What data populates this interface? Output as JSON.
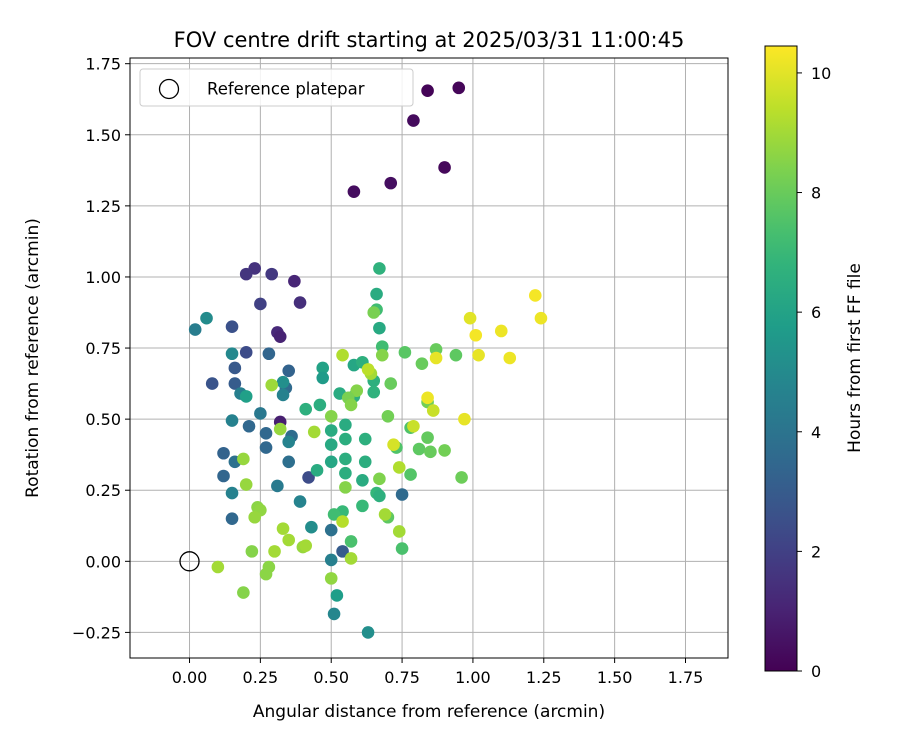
{
  "chart_data": {
    "type": "scatter",
    "title": "FOV centre drift starting at 2025/03/31 11:00:45",
    "xlabel": "Angular distance from reference (arcmin)",
    "ylabel": "Rotation from reference (arcmin)",
    "xlim": [
      -0.21,
      1.9
    ],
    "ylim": [
      -0.34,
      1.77
    ],
    "xticks": [
      0.0,
      0.25,
      0.5,
      0.75,
      1.0,
      1.25,
      1.5,
      1.75
    ],
    "xtick_labels": [
      "0.00",
      "0.25",
      "0.50",
      "0.75",
      "1.00",
      "1.25",
      "1.50",
      "1.75"
    ],
    "yticks": [
      -0.25,
      0.0,
      0.25,
      0.5,
      0.75,
      1.0,
      1.25,
      1.5,
      1.75
    ],
    "ytick_labels": [
      "−0.25",
      "0.00",
      "0.25",
      "0.50",
      "0.75",
      "1.00",
      "1.25",
      "1.50",
      "1.75"
    ],
    "grid": true,
    "legend": {
      "position": "upper-left",
      "entries": [
        "Reference platepar"
      ]
    },
    "reference_point": {
      "x": 0.0,
      "y": 0.0,
      "label": "Reference platepar"
    },
    "colorbar": {
      "label": "Hours from first FF file",
      "range": [
        0,
        10.45
      ],
      "ticks": [
        0,
        2,
        4,
        6,
        8,
        10
      ],
      "tick_labels": [
        "0",
        "2",
        "4",
        "6",
        "8",
        "10"
      ],
      "colormap": "viridis"
    },
    "points": [
      [
        0.84,
        1.655,
        0.1
      ],
      [
        0.95,
        1.665,
        0.15
      ],
      [
        0.79,
        1.55,
        0.3
      ],
      [
        0.58,
        1.3,
        0.35
      ],
      [
        0.71,
        1.33,
        0.4
      ],
      [
        0.9,
        1.385,
        0.2
      ],
      [
        0.23,
        1.03,
        1.5
      ],
      [
        0.2,
        1.01,
        1.6
      ],
      [
        0.29,
        1.01,
        1.7
      ],
      [
        0.37,
        0.985,
        1.1
      ],
      [
        0.25,
        0.905,
        2.0
      ],
      [
        0.39,
        0.91,
        1.4
      ],
      [
        0.31,
        0.805,
        1.2
      ],
      [
        0.32,
        0.79,
        1.0
      ],
      [
        0.32,
        0.49,
        0.9
      ],
      [
        0.42,
        0.295,
        2.4
      ],
      [
        0.15,
        0.825,
        2.6
      ],
      [
        0.2,
        0.735,
        2.4
      ],
      [
        0.28,
        0.73,
        3.4
      ],
      [
        0.08,
        0.625,
        2.7
      ],
      [
        0.16,
        0.68,
        2.9
      ],
      [
        0.16,
        0.625,
        3.0
      ],
      [
        0.35,
        0.67,
        3.3
      ],
      [
        0.34,
        0.61,
        3.6
      ],
      [
        0.33,
        0.585,
        4.6
      ],
      [
        0.36,
        0.44,
        3.7
      ],
      [
        0.25,
        0.52,
        4.2
      ],
      [
        0.21,
        0.475,
        3.5
      ],
      [
        0.27,
        0.45,
        3.5
      ],
      [
        0.35,
        0.35,
        3.8
      ],
      [
        0.12,
        0.38,
        3.3
      ],
      [
        0.16,
        0.35,
        3.9
      ],
      [
        0.27,
        0.4,
        3.5
      ],
      [
        0.12,
        0.3,
        3.4
      ],
      [
        0.31,
        0.265,
        4.3
      ],
      [
        0.39,
        0.21,
        4.7
      ],
      [
        0.15,
        0.15,
        3.5
      ],
      [
        0.15,
        0.24,
        4.6
      ],
      [
        0.54,
        0.035,
        3.0
      ],
      [
        0.5,
        0.11,
        3.9
      ],
      [
        0.75,
        0.235,
        3.6
      ],
      [
        0.5,
        0.005,
        4.5
      ],
      [
        0.02,
        0.815,
        4.4
      ],
      [
        0.06,
        0.855,
        5.0
      ],
      [
        0.15,
        0.73,
        4.9
      ],
      [
        0.18,
        0.59,
        4.5
      ],
      [
        0.2,
        0.58,
        5.9
      ],
      [
        0.15,
        0.495,
        4.6
      ],
      [
        0.33,
        0.63,
        5.2
      ],
      [
        0.35,
        0.42,
        4.7
      ],
      [
        0.43,
        0.12,
        5.1
      ],
      [
        0.52,
        -0.12,
        5.8
      ],
      [
        0.51,
        -0.185,
        4.8
      ],
      [
        0.63,
        -0.25,
        5.2
      ],
      [
        0.47,
        0.68,
        6.0
      ],
      [
        0.47,
        0.645,
        5.7
      ],
      [
        0.41,
        0.535,
        6.6
      ],
      [
        0.46,
        0.55,
        6.5
      ],
      [
        0.5,
        0.46,
        6.4
      ],
      [
        0.5,
        0.41,
        6.3
      ],
      [
        0.5,
        0.35,
        6.2
      ],
      [
        0.45,
        0.32,
        6.4
      ],
      [
        0.53,
        0.59,
        6.4
      ],
      [
        0.58,
        0.69,
        6.2
      ],
      [
        0.58,
        0.58,
        6.6
      ],
      [
        0.55,
        0.48,
        6.4
      ],
      [
        0.55,
        0.43,
        6.5
      ],
      [
        0.55,
        0.36,
        6.5
      ],
      [
        0.55,
        0.31,
        6.5
      ],
      [
        0.62,
        0.35,
        6.5
      ],
      [
        0.61,
        0.285,
        6.4
      ],
      [
        0.62,
        0.43,
        6.6
      ],
      [
        0.61,
        0.7,
        6.6
      ],
      [
        0.65,
        0.635,
        6.6
      ],
      [
        0.65,
        0.595,
        6.7
      ],
      [
        0.67,
        0.82,
        6.3
      ],
      [
        0.66,
        0.94,
        6.4
      ],
      [
        0.67,
        1.03,
        6.7
      ],
      [
        0.66,
        0.885,
        7.2
      ],
      [
        0.68,
        0.755,
        7.2
      ],
      [
        0.66,
        0.24,
        6.9
      ],
      [
        0.67,
        0.23,
        6.6
      ],
      [
        0.54,
        0.175,
        7.0
      ],
      [
        0.61,
        0.195,
        7.0
      ],
      [
        0.57,
        0.07,
        7.4
      ],
      [
        0.51,
        0.165,
        7.2
      ],
      [
        0.75,
        0.045,
        7.4
      ],
      [
        0.7,
        0.155,
        7.8
      ],
      [
        0.73,
        0.4,
        7.5
      ],
      [
        0.78,
        0.47,
        7.5
      ],
      [
        0.78,
        0.305,
        7.6
      ],
      [
        0.81,
        0.395,
        7.8
      ],
      [
        0.84,
        0.435,
        7.9
      ],
      [
        0.85,
        0.385,
        8.0
      ],
      [
        0.84,
        0.56,
        8.2
      ],
      [
        0.76,
        0.735,
        7.7
      ],
      [
        0.82,
        0.695,
        8.0
      ],
      [
        0.87,
        0.745,
        8.0
      ],
      [
        0.94,
        0.725,
        7.8
      ],
      [
        0.9,
        0.39,
        8.2
      ],
      [
        0.96,
        0.295,
        8.1
      ],
      [
        0.71,
        0.625,
        8.0
      ],
      [
        0.7,
        0.51,
        8.2
      ],
      [
        0.65,
        0.875,
        8.3
      ],
      [
        0.59,
        0.6,
        8.5
      ],
      [
        0.56,
        0.575,
        8.3
      ],
      [
        0.57,
        0.55,
        8.5
      ],
      [
        0.5,
        0.51,
        8.5
      ],
      [
        0.55,
        0.26,
        8.5
      ],
      [
        0.67,
        0.29,
        8.4
      ],
      [
        0.68,
        0.725,
        8.5
      ],
      [
        0.64,
        0.66,
        9.0
      ],
      [
        0.63,
        0.675,
        9.4
      ],
      [
        0.54,
        0.725,
        9.2
      ],
      [
        0.44,
        0.455,
        9.0
      ],
      [
        0.32,
        0.465,
        8.8
      ],
      [
        0.29,
        0.62,
        8.9
      ],
      [
        0.19,
        0.36,
        8.8
      ],
      [
        0.2,
        0.27,
        8.8
      ],
      [
        0.24,
        0.19,
        8.6
      ],
      [
        0.25,
        0.18,
        8.7
      ],
      [
        0.23,
        0.155,
        8.8
      ],
      [
        0.33,
        0.115,
        9.0
      ],
      [
        0.35,
        0.075,
        9.0
      ],
      [
        0.4,
        0.05,
        8.8
      ],
      [
        0.41,
        0.055,
        9.0
      ],
      [
        0.3,
        0.035,
        9.0
      ],
      [
        0.22,
        0.035,
        8.5
      ],
      [
        0.28,
        -0.02,
        8.6
      ],
      [
        0.27,
        -0.045,
        8.6
      ],
      [
        0.19,
        -0.11,
        8.5
      ],
      [
        0.1,
        -0.02,
        9.0
      ],
      [
        0.5,
        -0.06,
        8.7
      ],
      [
        0.57,
        0.01,
        9.0
      ],
      [
        0.54,
        0.14,
        9.3
      ],
      [
        0.69,
        0.165,
        9.0
      ],
      [
        0.74,
        0.105,
        9.0
      ],
      [
        0.74,
        0.33,
        9.2
      ],
      [
        0.72,
        0.41,
        9.8
      ],
      [
        0.79,
        0.475,
        9.6
      ],
      [
        0.84,
        0.575,
        10.2
      ],
      [
        0.86,
        0.53,
        9.6
      ],
      [
        0.87,
        0.715,
        10.1
      ],
      [
        0.97,
        0.5,
        10.1
      ],
      [
        0.99,
        0.855,
        10.0
      ],
      [
        1.01,
        0.795,
        10.3
      ],
      [
        1.02,
        0.725,
        10.1
      ],
      [
        1.1,
        0.81,
        10.2
      ],
      [
        1.13,
        0.715,
        10.2
      ],
      [
        1.22,
        0.935,
        10.3
      ],
      [
        1.24,
        0.855,
        10.2
      ]
    ]
  }
}
